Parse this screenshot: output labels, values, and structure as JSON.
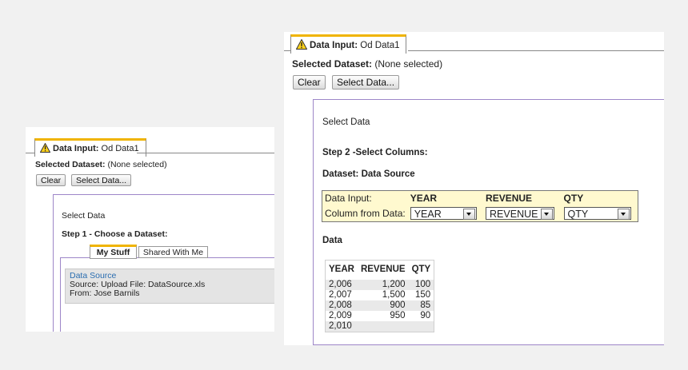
{
  "left": {
    "tab": {
      "label_bold": "Data Input:",
      "label_rest": " Od Data1"
    },
    "selected_dataset": {
      "label": "Selected Dataset:",
      "value": " (None selected)"
    },
    "buttons": {
      "clear": "Clear",
      "select_data": "Select Data..."
    },
    "dialog": {
      "title": "Select Data",
      "step": "Step 1 - Choose a Dataset:",
      "tabs": [
        "My Stuff",
        "Shared With Me"
      ],
      "dataset": {
        "name": "Data Source",
        "source": "Source: Upload File: DataSource.xls",
        "from": "From: Jose Barnils"
      }
    }
  },
  "right": {
    "tab": {
      "label_bold": "Data Input:",
      "label_rest": " Od Data1"
    },
    "selected_dataset": {
      "label": "Selected Dataset:",
      "value": " (None selected)"
    },
    "buttons": {
      "clear": "Clear",
      "select_data": "Select Data..."
    },
    "dialog": {
      "title": "Select Data",
      "step": "Step 2 -Select Columns:",
      "dataset_label": "Dataset: Data Source",
      "mapping": {
        "row1_label": "Data Input:",
        "row2_label": "Column from Data:",
        "columns": [
          "YEAR",
          "REVENUE",
          "QTY"
        ],
        "selected": [
          "YEAR",
          "REVENUE",
          "QTY"
        ]
      },
      "data_label": "Data",
      "table": {
        "headers": [
          "YEAR",
          "REVENUE",
          "QTY"
        ],
        "rows": [
          [
            "2,006",
            "1,200",
            "100"
          ],
          [
            "2,007",
            "1,500",
            "150"
          ],
          [
            "2,008",
            "900",
            "85"
          ],
          [
            "2,009",
            "950",
            "90"
          ],
          [
            "2,010",
            "",
            ""
          ]
        ]
      }
    }
  },
  "colors": {
    "tab_accent": "#f0b400",
    "dialog_border": "#9d86c8",
    "mapping_bg": "#fff9cf",
    "link": "#2a6db0"
  }
}
